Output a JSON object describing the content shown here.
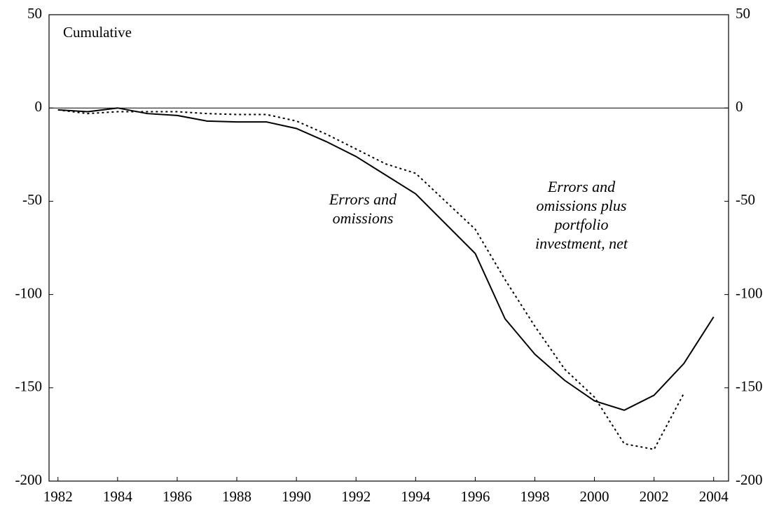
{
  "chart_data": {
    "type": "line",
    "title": "Cumulative",
    "x": [
      1982,
      1983,
      1984,
      1985,
      1986,
      1987,
      1988,
      1989,
      1990,
      1991,
      1992,
      1993,
      1994,
      1995,
      1996,
      1997,
      1998,
      1999,
      2000,
      2001,
      2002,
      2003,
      2004
    ],
    "series": [
      {
        "color": "#000000",
        "dash": "solid",
        "values": [
          -1,
          -2,
          0,
          -3,
          -4,
          -7,
          -7.5,
          -7.5,
          -11,
          -18,
          -26,
          -36,
          -46,
          -62,
          -78,
          -113,
          -132,
          -146,
          -157,
          -162,
          -154,
          -137,
          -112
        ]
      },
      {
        "color": "#000000",
        "dash": "dotted",
        "values": [
          -1,
          -3,
          -2,
          -2,
          -2,
          -3,
          -3.5,
          -3.5,
          -7,
          -14,
          -22,
          -30,
          -35,
          -50,
          -65,
          -92,
          -117,
          -140,
          -155,
          -180,
          -183,
          -153,
          null
        ]
      }
    ],
    "annotations": [
      {
        "lines": [
          "Errors and",
          "omissions"
        ]
      },
      {
        "lines": [
          "Errors and",
          "omissions plus",
          "portfolio",
          "investment, net"
        ]
      }
    ],
    "hline": 0,
    "xlim": [
      1981.7,
      2004.5
    ],
    "xticks": [
      1982,
      1984,
      1986,
      1988,
      1990,
      1992,
      1994,
      1996,
      1998,
      2000,
      2002,
      2004
    ],
    "ylim": [
      -200,
      50
    ],
    "yticks": [
      -200,
      -150,
      -100,
      -50,
      0,
      50
    ],
    "y2lim": [
      -200,
      50
    ],
    "y2ticks": [
      -200,
      -150,
      -100,
      -50,
      0,
      50
    ]
  }
}
